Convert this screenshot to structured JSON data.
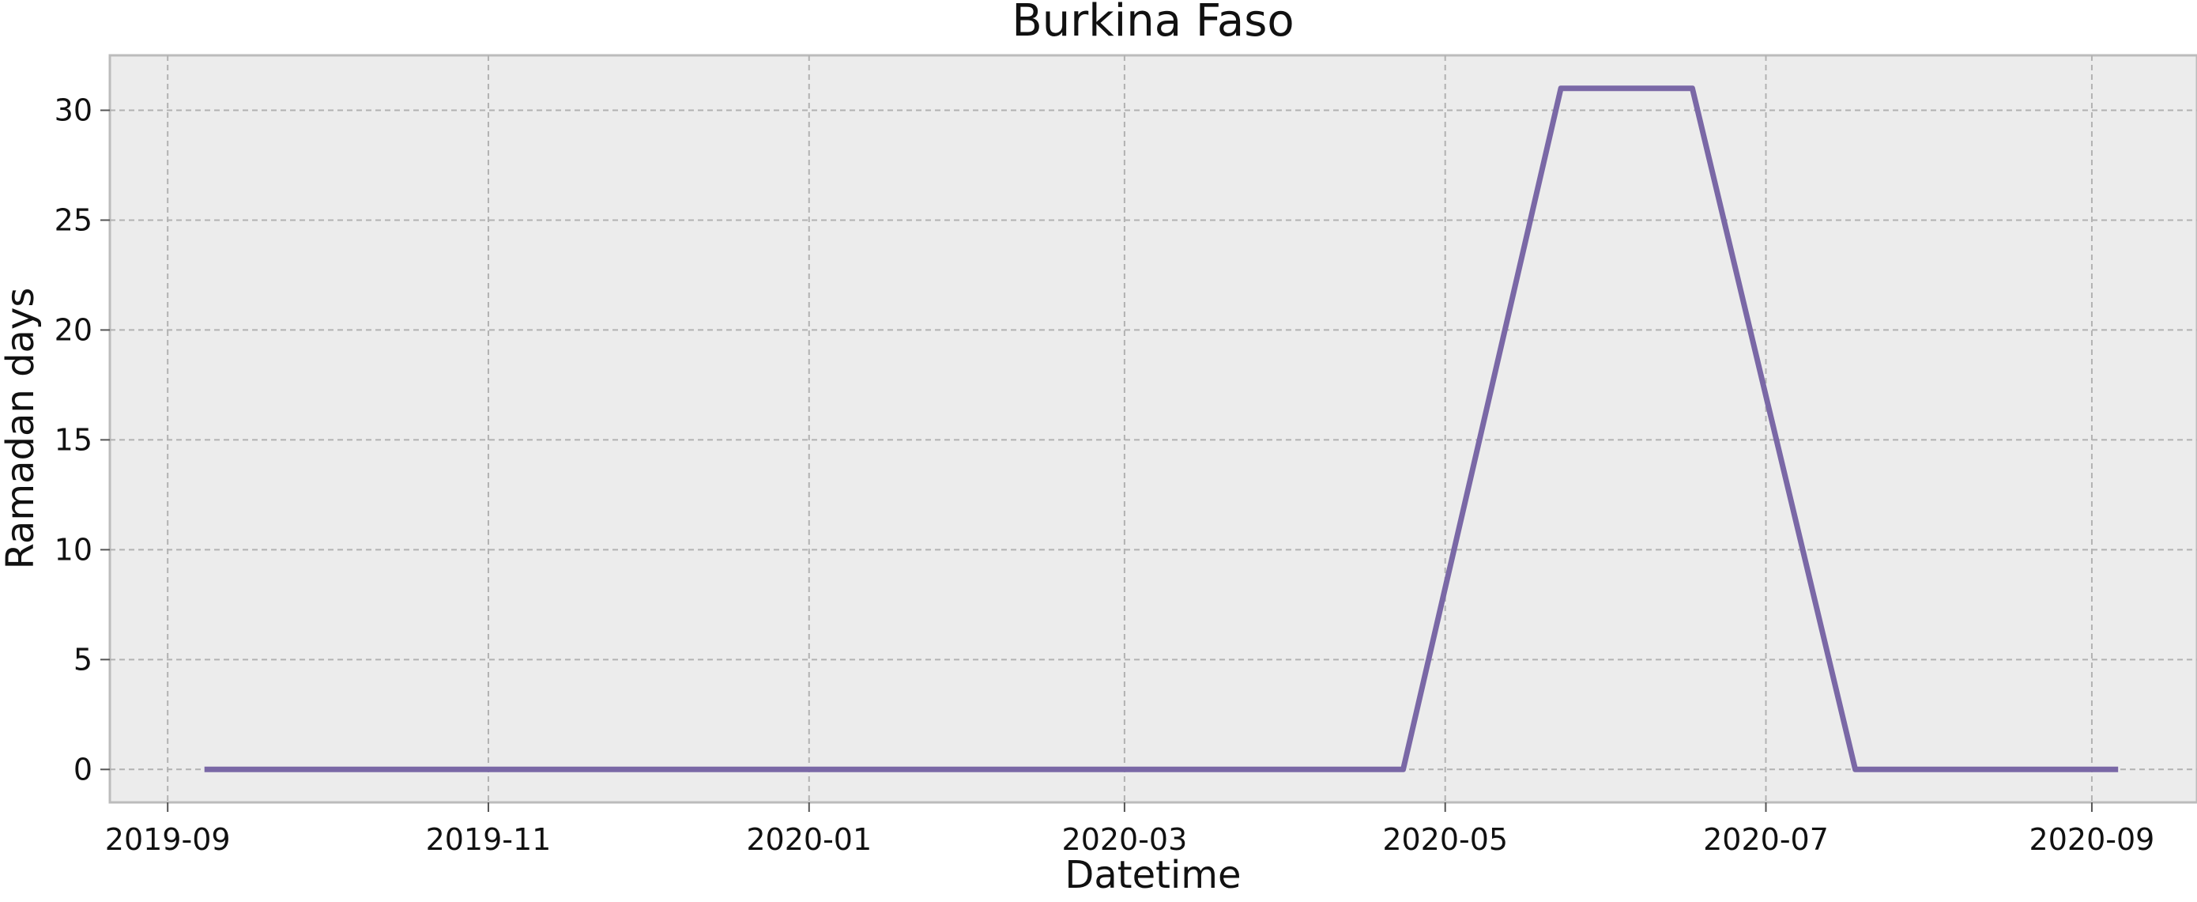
{
  "chart_data": {
    "type": "line",
    "title": "Burkina Faso",
    "xlabel": "Datetime",
    "ylabel": "Ramadan days",
    "x_ticks": [
      "2019-09",
      "2019-11",
      "2020-01",
      "2020-03",
      "2020-05",
      "2020-07",
      "2020-09"
    ],
    "y_ticks": [
      0,
      5,
      10,
      15,
      20,
      25,
      30
    ],
    "ylim": [
      -1.5,
      32.5
    ],
    "xlim": [
      "2019-08-21",
      "2020-09-21"
    ],
    "grid": true,
    "series": [
      {
        "color": "#7a68a6",
        "points": [
          {
            "x": "2019-09-08",
            "y": 0
          },
          {
            "x": "2020-04-23",
            "y": 0
          },
          {
            "x": "2020-05-23",
            "y": 31
          },
          {
            "x": "2020-06-17",
            "y": 31
          },
          {
            "x": "2020-07-18",
            "y": 0
          },
          {
            "x": "2020-09-06",
            "y": 0
          }
        ]
      }
    ]
  }
}
